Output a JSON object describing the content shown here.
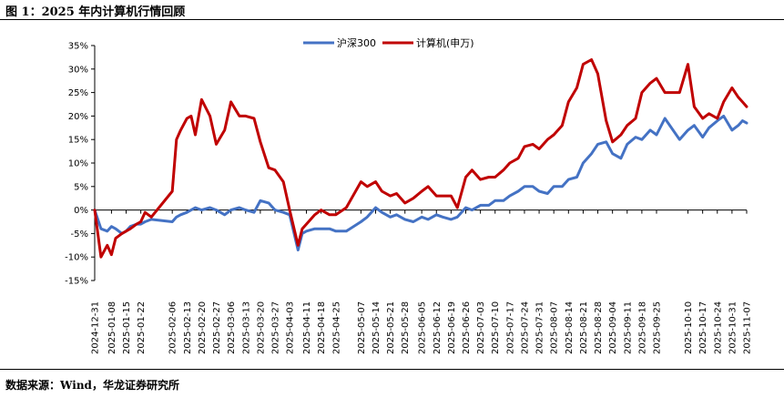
{
  "figure": {
    "title": "图 1：2025 年内计算机行情回顾",
    "source": "数据来源：Wind，华龙证券研究所"
  },
  "chart_data": {
    "type": "line",
    "ylim": [
      -15,
      35
    ],
    "yticks": [
      -15,
      -10,
      -5,
      0,
      5,
      10,
      15,
      20,
      25,
      30,
      35
    ],
    "ytick_labels": [
      "-15%",
      "-10%",
      "-5%",
      "0%",
      "5%",
      "10%",
      "15%",
      "20%",
      "25%",
      "30%",
      "35%"
    ],
    "x_range": [
      "2024-12-31",
      "2025-11-07"
    ],
    "xticks": [
      "2024-12-31",
      "2025-01-08",
      "2025-01-15",
      "2025-01-22",
      "2025-02-06",
      "2025-02-13",
      "2025-02-20",
      "2025-02-27",
      "2025-03-06",
      "2025-03-13",
      "2025-03-20",
      "2025-03-27",
      "2025-04-03",
      "2025-04-11",
      "2025-04-18",
      "2025-04-25",
      "2025-05-07",
      "2025-05-14",
      "2025-05-21",
      "2025-05-28",
      "2025-06-05",
      "2025-06-12",
      "2025-06-19",
      "2025-06-26",
      "2025-07-03",
      "2025-07-10",
      "2025-07-17",
      "2025-07-24",
      "2025-07-31",
      "2025-08-07",
      "2025-08-14",
      "2025-08-21",
      "2025-08-28",
      "2025-09-04",
      "2025-09-11",
      "2025-09-18",
      "2025-09-25",
      "2025-10-10",
      "2025-10-17",
      "2025-10-24",
      "2025-10-31",
      "2025-11-07"
    ],
    "legend_position": "top-center",
    "grid": false,
    "series": [
      {
        "name": "沪深300",
        "color": "#4472C4",
        "x": [
          "2024-12-31",
          "2025-01-03",
          "2025-01-06",
          "2025-01-08",
          "2025-01-10",
          "2025-01-13",
          "2025-01-15",
          "2025-01-17",
          "2025-01-20",
          "2025-01-22",
          "2025-01-24",
          "2025-01-27",
          "2025-02-06",
          "2025-02-08",
          "2025-02-10",
          "2025-02-13",
          "2025-02-15",
          "2025-02-17",
          "2025-02-20",
          "2025-02-24",
          "2025-02-27",
          "2025-03-03",
          "2025-03-06",
          "2025-03-10",
          "2025-03-13",
          "2025-03-17",
          "2025-03-20",
          "2025-03-24",
          "2025-03-27",
          "2025-03-31",
          "2025-04-03",
          "2025-04-07",
          "2025-04-09",
          "2025-04-11",
          "2025-04-15",
          "2025-04-18",
          "2025-04-22",
          "2025-04-25",
          "2025-04-30",
          "2025-05-07",
          "2025-05-10",
          "2025-05-14",
          "2025-05-17",
          "2025-05-21",
          "2025-05-24",
          "2025-05-28",
          "2025-06-01",
          "2025-06-05",
          "2025-06-08",
          "2025-06-12",
          "2025-06-15",
          "2025-06-19",
          "2025-06-22",
          "2025-06-26",
          "2025-06-29",
          "2025-07-03",
          "2025-07-07",
          "2025-07-10",
          "2025-07-14",
          "2025-07-17",
          "2025-07-21",
          "2025-07-24",
          "2025-07-28",
          "2025-07-31",
          "2025-08-04",
          "2025-08-07",
          "2025-08-11",
          "2025-08-14",
          "2025-08-18",
          "2025-08-21",
          "2025-08-25",
          "2025-08-28",
          "2025-09-01",
          "2025-09-04",
          "2025-09-08",
          "2025-09-11",
          "2025-09-15",
          "2025-09-18",
          "2025-09-22",
          "2025-09-25",
          "2025-09-29",
          "2025-10-06",
          "2025-10-10",
          "2025-10-13",
          "2025-10-17",
          "2025-10-20",
          "2025-10-24",
          "2025-10-27",
          "2025-10-31",
          "2025-11-03",
          "2025-11-05",
          "2025-11-07"
        ],
        "values": [
          0,
          -4,
          -4.5,
          -3.5,
          -4,
          -5,
          -4.5,
          -3.5,
          -3,
          -3,
          -2.5,
          -2,
          -2.5,
          -1.5,
          -1,
          -0.5,
          0,
          0.5,
          0,
          0.5,
          0,
          -1,
          0,
          0.5,
          0,
          -0.5,
          2,
          1.5,
          0,
          -0.5,
          -1,
          -8.5,
          -5,
          -4.5,
          -4,
          -4,
          -4,
          -4.5,
          -4.5,
          -2.5,
          -1.5,
          0.5,
          -0.5,
          -1.5,
          -1,
          -2,
          -2.5,
          -1.5,
          -2,
          -1,
          -1.5,
          -2,
          -1.5,
          0.5,
          0,
          1,
          1,
          2,
          2,
          3,
          4,
          5,
          5,
          4,
          3.5,
          5,
          5,
          6.5,
          7,
          10,
          12,
          14,
          14.5,
          12,
          11,
          14,
          15.5,
          15,
          17,
          16,
          19.5,
          15,
          17,
          18,
          15.5,
          17.5,
          19,
          20,
          17,
          18,
          19,
          18.5
        ]
      },
      {
        "name": "计算机(申万)",
        "color": "#C00000",
        "x": [
          "2024-12-31",
          "2025-01-03",
          "2025-01-06",
          "2025-01-08",
          "2025-01-10",
          "2025-01-13",
          "2025-01-15",
          "2025-01-17",
          "2025-01-20",
          "2025-01-22",
          "2025-01-24",
          "2025-01-27",
          "2025-02-06",
          "2025-02-08",
          "2025-02-10",
          "2025-02-13",
          "2025-02-15",
          "2025-02-17",
          "2025-02-20",
          "2025-02-24",
          "2025-02-27",
          "2025-03-03",
          "2025-03-06",
          "2025-03-10",
          "2025-03-13",
          "2025-03-17",
          "2025-03-20",
          "2025-03-24",
          "2025-03-27",
          "2025-03-31",
          "2025-04-03",
          "2025-04-07",
          "2025-04-09",
          "2025-04-11",
          "2025-04-15",
          "2025-04-18",
          "2025-04-22",
          "2025-04-25",
          "2025-04-30",
          "2025-05-07",
          "2025-05-10",
          "2025-05-14",
          "2025-05-17",
          "2025-05-21",
          "2025-05-24",
          "2025-05-28",
          "2025-06-01",
          "2025-06-05",
          "2025-06-08",
          "2025-06-12",
          "2025-06-15",
          "2025-06-19",
          "2025-06-22",
          "2025-06-26",
          "2025-06-29",
          "2025-07-03",
          "2025-07-07",
          "2025-07-10",
          "2025-07-14",
          "2025-07-17",
          "2025-07-21",
          "2025-07-24",
          "2025-07-28",
          "2025-07-31",
          "2025-08-04",
          "2025-08-07",
          "2025-08-11",
          "2025-08-14",
          "2025-08-18",
          "2025-08-21",
          "2025-08-25",
          "2025-08-28",
          "2025-09-01",
          "2025-09-04",
          "2025-09-08",
          "2025-09-11",
          "2025-09-15",
          "2025-09-18",
          "2025-09-22",
          "2025-09-25",
          "2025-09-29",
          "2025-10-06",
          "2025-10-10",
          "2025-10-13",
          "2025-10-17",
          "2025-10-20",
          "2025-10-24",
          "2025-10-27",
          "2025-10-31",
          "2025-11-03",
          "2025-11-05",
          "2025-11-07"
        ],
        "values": [
          0,
          -10,
          -7.5,
          -9.5,
          -6,
          -5,
          -4.5,
          -4,
          -3,
          -2.5,
          -0.5,
          -1.5,
          4,
          15,
          17,
          19.5,
          20,
          16,
          23.5,
          20,
          14,
          17,
          23,
          20,
          20,
          19.5,
          14.5,
          9,
          8.5,
          6,
          0,
          -7.5,
          -4,
          -3,
          -1,
          0,
          -1,
          -1,
          0.5,
          6,
          5,
          6,
          4,
          3,
          3.5,
          1.5,
          2.5,
          4,
          5,
          3,
          3,
          3,
          0.5,
          7,
          8.5,
          6.5,
          7,
          7,
          8.5,
          10,
          11,
          13.5,
          14,
          13,
          15,
          16,
          18,
          23,
          26,
          31,
          32,
          29,
          19,
          14.5,
          16,
          18,
          19.5,
          25,
          27,
          28,
          25,
          25,
          31,
          22,
          19.5,
          20.5,
          19.5,
          23,
          26,
          24,
          23,
          22
        ]
      }
    ]
  }
}
